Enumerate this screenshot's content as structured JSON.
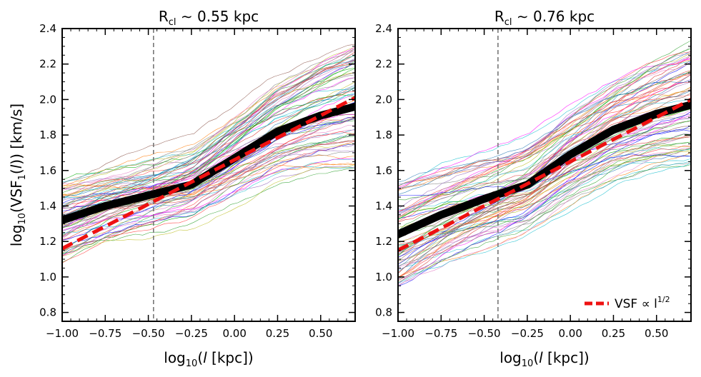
{
  "chart_data": [
    {
      "type": "line",
      "title_main": "R",
      "title_sub": "cl",
      "title_rest": " ∼ 0.55 kpc",
      "xlabel": "log10(l [kpc])",
      "ylabel": "log10(VSF1(l)) [km/s]",
      "xlim": [
        -1.0,
        0.7
      ],
      "ylim": [
        0.75,
        2.4
      ],
      "xticks": [
        -1.0,
        -0.75,
        -0.5,
        -0.25,
        0.0,
        0.25,
        0.5
      ],
      "xtick_labels": [
        "−1.00",
        "−0.75",
        "−0.50",
        "−0.25",
        "0.00",
        "0.25",
        "0.50"
      ],
      "yticks": [
        0.8,
        1.0,
        1.2,
        1.4,
        1.6,
        1.8,
        2.0,
        2.2,
        2.4
      ],
      "ytick_labels": [
        "0.8",
        "1.0",
        "1.2",
        "1.4",
        "1.6",
        "1.8",
        "2.0",
        "2.2",
        "2.4"
      ],
      "vline_x": -0.47,
      "mean_series": {
        "x": [
          -1.0,
          -0.75,
          -0.5,
          -0.25,
          0.0,
          0.25,
          0.5,
          0.7
        ],
        "y": [
          1.32,
          1.4,
          1.46,
          1.52,
          1.67,
          1.82,
          1.91,
          1.96
        ]
      },
      "reference_series": {
        "x": [
          -1.0,
          0.7
        ],
        "y": [
          1.16,
          2.01
        ]
      },
      "individual_spread": {
        "low_at_start": 1.0,
        "high_at_start": 1.55,
        "low_at_end": 1.55,
        "high_at_end": 2.35,
        "count": 80
      }
    },
    {
      "type": "line",
      "title_main": "R",
      "title_sub": "cl",
      "title_rest": " ∼ 0.76 kpc",
      "xlabel": "log10(l [kpc])",
      "xlim": [
        -1.0,
        0.7
      ],
      "ylim": [
        0.75,
        2.4
      ],
      "xticks": [
        -1.0,
        -0.75,
        -0.5,
        -0.25,
        0.0,
        0.25,
        0.5
      ],
      "xtick_labels": [
        "−1.00",
        "−0.75",
        "−0.50",
        "−0.25",
        "0.00",
        "0.25",
        "0.50"
      ],
      "yticks": [
        0.8,
        1.0,
        1.2,
        1.4,
        1.6,
        1.8,
        2.0,
        2.2,
        2.4
      ],
      "ytick_labels": [
        "0.8",
        "1.0",
        "1.2",
        "1.4",
        "1.6",
        "1.8",
        "2.0",
        "2.2",
        "2.4"
      ],
      "vline_x": -0.42,
      "mean_series": {
        "x": [
          -1.0,
          -0.75,
          -0.5,
          -0.25,
          0.0,
          0.25,
          0.5,
          0.7
        ],
        "y": [
          1.24,
          1.35,
          1.44,
          1.52,
          1.69,
          1.83,
          1.92,
          1.97
        ]
      },
      "reference_series": {
        "x": [
          -1.0,
          0.7
        ],
        "y": [
          1.15,
          2.0
        ]
      },
      "individual_spread": {
        "low_at_start": 0.85,
        "high_at_start": 1.5,
        "low_at_end": 1.55,
        "high_at_end": 2.3,
        "count": 80
      },
      "legend": {
        "label": "VSF ∝ l",
        "superscript": "1/2",
        "placement": "lower-right"
      }
    }
  ],
  "colors": {
    "mean_line": "#000000",
    "reference_line": "#ee1111",
    "vline": "#777777",
    "palette": [
      "#1f77b4",
      "#ff7f0e",
      "#2ca02c",
      "#d62728",
      "#9467bd",
      "#8c564b",
      "#e377c2",
      "#7f7f7f",
      "#bcbd22",
      "#17becf",
      "#0000ff",
      "#ff00ff",
      "#00aa00",
      "#ff3333"
    ]
  }
}
